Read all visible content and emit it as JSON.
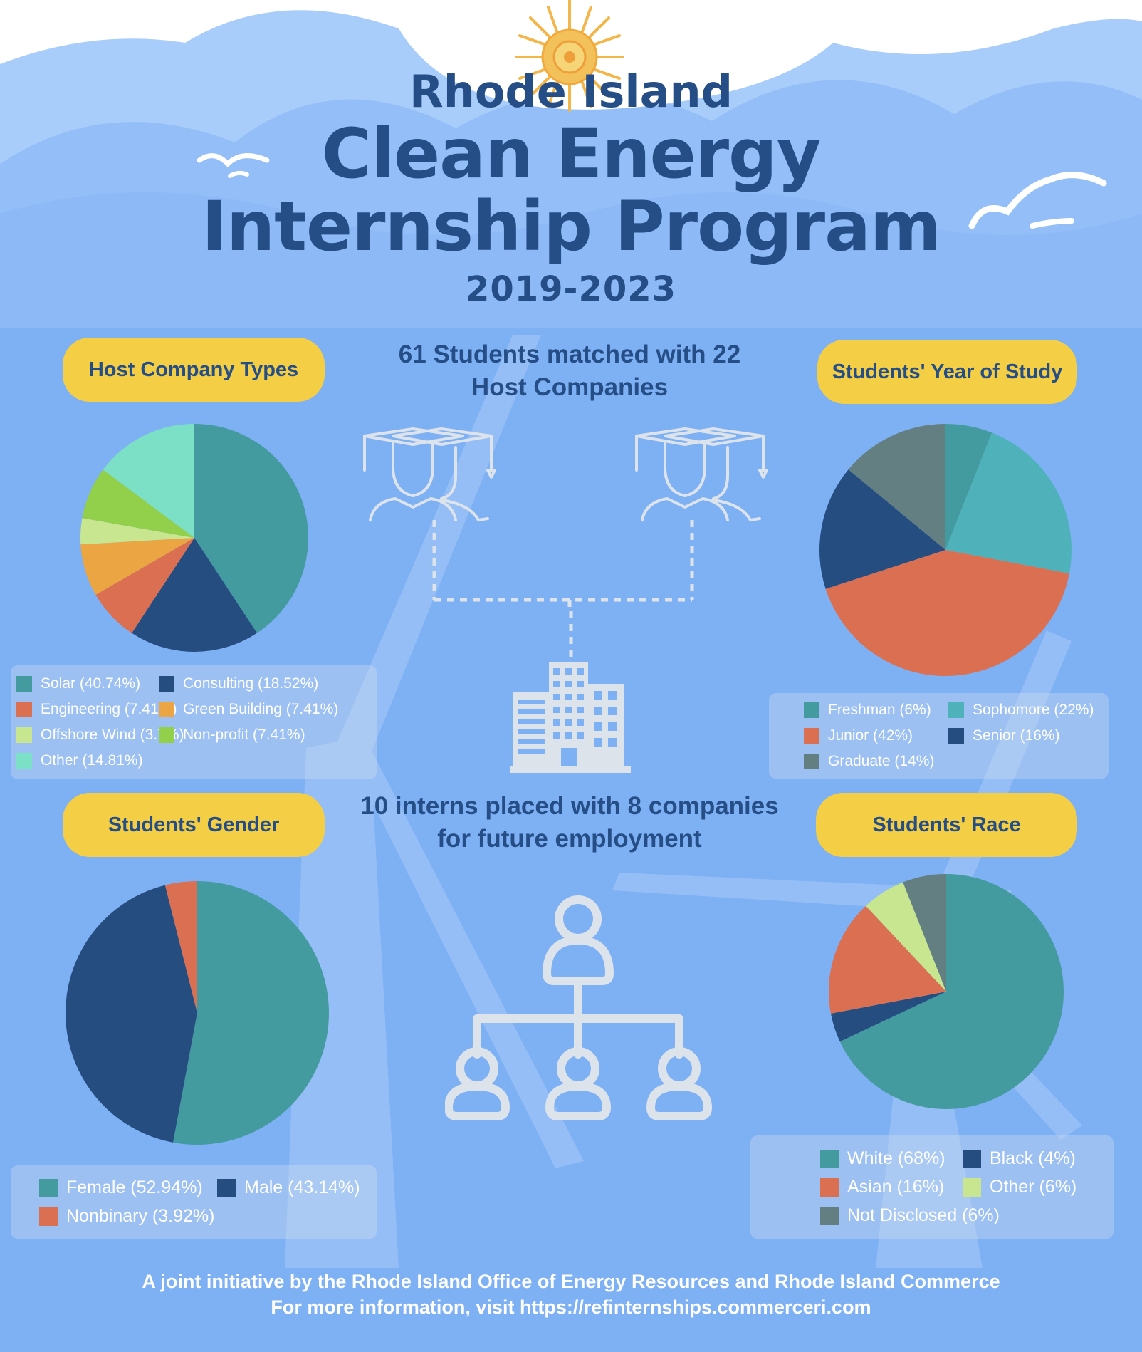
{
  "title": {
    "line1": "Rhode Island",
    "line2": "Clean Energy",
    "line3": "Internship Program",
    "years": "2019-2023"
  },
  "stats": {
    "matched_line1": "61 Students matched with 22",
    "matched_line2": "Host Companies",
    "placed_line1": "10 interns placed with 8 companies",
    "placed_line2": "for future employment"
  },
  "footer": {
    "line1": "A joint initiative by the Rhode Island Office of Energy Resources and Rhode Island Commerce",
    "line2": "For more information, visit https://refinternships.commerceri.com"
  },
  "icons": [
    "sun-icon",
    "seagull-icon",
    "graduates-icon",
    "office-building-icon",
    "team-hierarchy-icon"
  ],
  "colors": {
    "title": "#254d86",
    "background": "#7eb0f4",
    "pill": "#f4cf45",
    "teal": "#439b9f",
    "navy": "#254d80",
    "coral": "#db6f52",
    "orange": "#eba643",
    "light_green": "#c8e690",
    "green": "#92cf4a",
    "mint": "#7ce0c7",
    "aqua": "#4fb2ba",
    "slate": "#637f81"
  },
  "chart_data": [
    {
      "type": "pie",
      "title": "Host Company Types",
      "labels": [
        "Solar (40.74%)",
        "Consulting (18.52%)",
        "Engineering (7.41%)",
        "Green Building (7.41%)",
        "Offshore Wind (3.7%)",
        "Non-profit (7.41%)",
        "Other (14.81%)"
      ],
      "values": [
        40.74,
        18.52,
        7.41,
        7.41,
        3.7,
        7.41,
        14.81
      ],
      "colors": [
        "#439b9f",
        "#254d80",
        "#db6f52",
        "#eba643",
        "#c8e690",
        "#92cf4a",
        "#7ce0c7"
      ],
      "legend_position": "bottom"
    },
    {
      "type": "pie",
      "title": "Students' Year of Study",
      "labels": [
        "Freshman (6%)",
        "Sophomore (22%)",
        "Junior (42%)",
        "Senior (16%)",
        "Graduate (14%)"
      ],
      "values": [
        6,
        22,
        42,
        16,
        14
      ],
      "colors": [
        "#439b9f",
        "#4fb2ba",
        "#db6f52",
        "#254d80",
        "#637f81"
      ],
      "legend_position": "bottom"
    },
    {
      "type": "pie",
      "title": "Students' Gender",
      "labels": [
        "Female (52.94%)",
        "Male (43.14%)",
        "Nonbinary (3.92%)"
      ],
      "values": [
        52.94,
        43.14,
        3.92
      ],
      "colors": [
        "#439b9f",
        "#254d80",
        "#db6f52"
      ],
      "legend_position": "bottom"
    },
    {
      "type": "pie",
      "title": "Students' Race",
      "labels": [
        "White (68%)",
        "Black (4%)",
        "Asian (16%)",
        "Other (6%)",
        "Not Disclosed (6%)"
      ],
      "values": [
        68,
        4,
        16,
        6,
        6
      ],
      "colors": [
        "#439b9f",
        "#254d80",
        "#db6f52",
        "#c8e690",
        "#637f81"
      ],
      "legend_position": "bottom"
    }
  ]
}
